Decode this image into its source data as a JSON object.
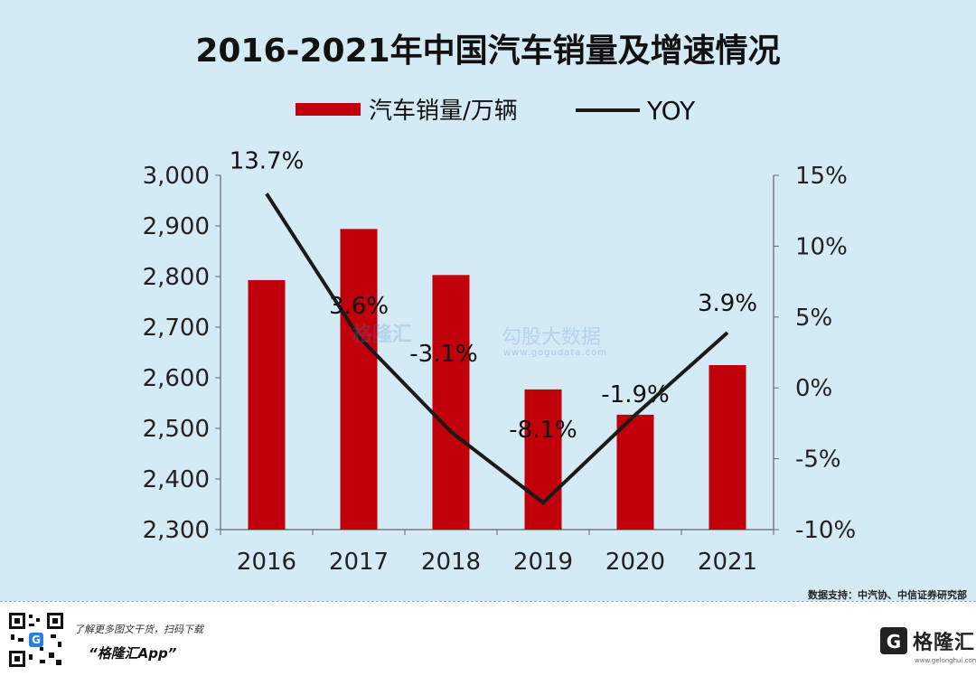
{
  "chart_data": {
    "type": "bar+line",
    "title": "2016-2021年中国汽车销量及增速情况",
    "categories": [
      "2016",
      "2017",
      "2018",
      "2019",
      "2020",
      "2021"
    ],
    "series": [
      {
        "name": "汽车销量/万辆",
        "type": "bar",
        "axis": "left",
        "color": "#c0000b",
        "values": [
          2793,
          2894,
          2803,
          2577,
          2527,
          2625
        ]
      },
      {
        "name": "YOY",
        "type": "line",
        "axis": "right",
        "color": "#1a1a1a",
        "values": [
          13.7,
          3.6,
          -3.1,
          -8.1,
          -1.9,
          3.9
        ],
        "labels": [
          "13.7%",
          "3.6%",
          "-3.1%",
          "-8.1%",
          "-1.9%",
          "3.9%"
        ]
      }
    ],
    "y_left": {
      "range": [
        2300,
        3000
      ],
      "ticks": [
        "2,300",
        "2,400",
        "2,500",
        "2,600",
        "2,700",
        "2,800",
        "2,900",
        "3,000"
      ],
      "values": [
        2300,
        2400,
        2500,
        2600,
        2700,
        2800,
        2900,
        3000
      ]
    },
    "y_right": {
      "range": [
        -10,
        15
      ],
      "ticks": [
        "-10%",
        "-5%",
        "0%",
        "5%",
        "10%",
        "15%"
      ],
      "values": [
        -10,
        -5,
        0,
        5,
        10,
        15
      ]
    },
    "legend_position": "top-center",
    "grid": false
  },
  "source_text": "数据支持：中汽协、中信证券研究部",
  "promo": {
    "line1": "了解更多图文干货，扫码下载",
    "line2": "“格隆汇App”"
  },
  "brand": {
    "name": "格隆汇",
    "sub": "www.gelonghui.com"
  },
  "watermark": {
    "brand": "格隆汇",
    "name": "勾股大数据",
    "url": "www.gogudata.com"
  }
}
